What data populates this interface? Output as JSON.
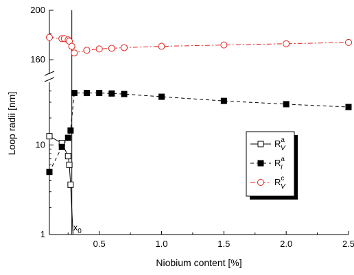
{
  "chart_data": {
    "type": "scatter",
    "xlabel": "Niobium content [%]",
    "ylabel": "Loop radii [nm]",
    "x_range": [
      0.1,
      2.5
    ],
    "x_ticks": [
      "0.5",
      "1.0",
      "1.5",
      "2.0",
      "2.5"
    ],
    "x_tick_values": [
      0.5,
      1.0,
      1.5,
      2.0,
      2.5
    ],
    "y_scale": "log (broken axis)",
    "y_lower_range": [
      1,
      45
    ],
    "y_upper_range": [
      150,
      200
    ],
    "y_ticks_lower": [
      "1",
      "10"
    ],
    "y_ticks_upper": [
      "160",
      "200"
    ],
    "grid": false,
    "legend_position": "right",
    "annotation": {
      "text": "x",
      "sub": "0",
      "x": 0.28
    },
    "series": [
      {
        "name": "R",
        "name_sup": "a",
        "name_sub": "V",
        "marker": "open-square",
        "line": "solid",
        "color": "#000000",
        "points": [
          [
            0.1,
            12.5
          ],
          [
            0.2,
            10.5
          ],
          [
            0.25,
            7.5
          ],
          [
            0.26,
            6.0
          ],
          [
            0.27,
            3.6
          ],
          [
            0.29,
            1.0
          ]
        ]
      },
      {
        "name": "R",
        "name_sup": "a",
        "name_sub": "I",
        "marker": "filled-square",
        "line": "dashed",
        "color": "#000000",
        "points": [
          [
            0.1,
            5.0
          ],
          [
            0.2,
            9.5
          ],
          [
            0.25,
            12.0
          ],
          [
            0.27,
            14.5
          ],
          [
            0.3,
            38.0
          ],
          [
            0.4,
            38.0
          ],
          [
            0.5,
            38.0
          ],
          [
            0.6,
            37.5
          ],
          [
            0.7,
            37.0
          ],
          [
            1.0,
            34.5
          ],
          [
            1.5,
            31.0
          ],
          [
            2.0,
            28.5
          ],
          [
            2.5,
            26.5
          ]
        ]
      },
      {
        "name": "R",
        "name_sup": "c",
        "name_sub": "V",
        "marker": "open-circle",
        "line": "dash-dot",
        "color": "#e0201c",
        "points": [
          [
            0.1,
            177
          ],
          [
            0.2,
            176
          ],
          [
            0.22,
            176
          ],
          [
            0.25,
            175
          ],
          [
            0.26,
            174
          ],
          [
            0.28,
            170
          ],
          [
            0.3,
            165
          ],
          [
            0.4,
            167
          ],
          [
            0.5,
            168
          ],
          [
            0.6,
            168.5
          ],
          [
            0.7,
            169
          ],
          [
            1.0,
            170
          ],
          [
            1.5,
            171
          ],
          [
            2.0,
            172
          ],
          [
            2.5,
            173
          ]
        ]
      }
    ]
  }
}
